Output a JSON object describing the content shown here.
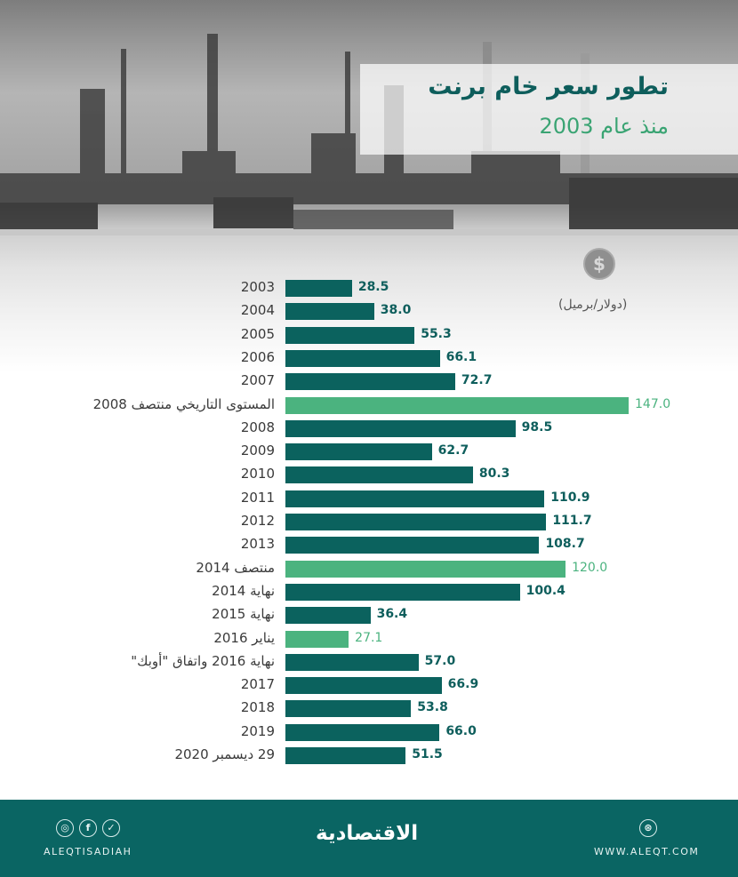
{
  "header": {
    "title": "تطور سعر خام برنت",
    "subtitle": "منذ عام 2003",
    "unit_label": "(دولار/برميل)",
    "coin_symbol": "$"
  },
  "colors": {
    "bar_primary": "#0b625e",
    "bar_highlight": "#4bb37f",
    "title": "#0e5e5c",
    "subtitle": "#3aa473",
    "footer_bg": "#0a6563"
  },
  "chart_data": {
    "type": "bar",
    "orientation": "horizontal",
    "title": "تطور سعر خام برنت",
    "subtitle": "منذ عام 2003",
    "xlabel": "",
    "ylabel": "(دولار/برميل)",
    "xlim": [
      0,
      150
    ],
    "grid": false,
    "legend": null,
    "categories": [
      "2003",
      "2004",
      "2005",
      "2006",
      "2007",
      "المستوى التاريخي منتصف 2008",
      "2008",
      "2009",
      "2010",
      "2011",
      "2012",
      "2013",
      "منتصف 2014",
      "نهاية 2014",
      "نهاية 2015",
      "يناير 2016",
      "نهاية 2016 واتفاق \"أوبك\"",
      "2017",
      "2018",
      "2019",
      "29 ديسمبر 2020"
    ],
    "values": [
      28.5,
      38.0,
      55.3,
      66.1,
      72.7,
      147.0,
      98.5,
      62.7,
      80.3,
      110.9,
      111.7,
      108.7,
      120.0,
      100.4,
      36.4,
      27.1,
      57.0,
      66.9,
      53.8,
      66.0,
      51.5
    ],
    "labels": [
      "28.5",
      "38.0",
      "55.3",
      "66.1",
      "72.7",
      "147.0",
      "98.5",
      "62.7",
      "80.3",
      "110.9",
      "111.7",
      "108.7",
      "120.0",
      "100.4",
      "36.4",
      "27.1",
      "57.0",
      "66.9",
      "53.8",
      "66.0",
      "51.5"
    ],
    "highlighted": [
      false,
      false,
      false,
      false,
      false,
      true,
      false,
      false,
      false,
      false,
      false,
      false,
      true,
      false,
      false,
      true,
      false,
      false,
      false,
      false,
      false
    ]
  },
  "footer": {
    "social_icons": [
      "instagram-icon",
      "facebook-icon",
      "twitter-icon"
    ],
    "social_glyphs": [
      "◎",
      "f",
      "✓"
    ],
    "handle": "ALEQTISADIAH",
    "logo": "الاقتصادية",
    "web_glyph": "⊛",
    "website": "WWW.ALEQT.COM"
  }
}
